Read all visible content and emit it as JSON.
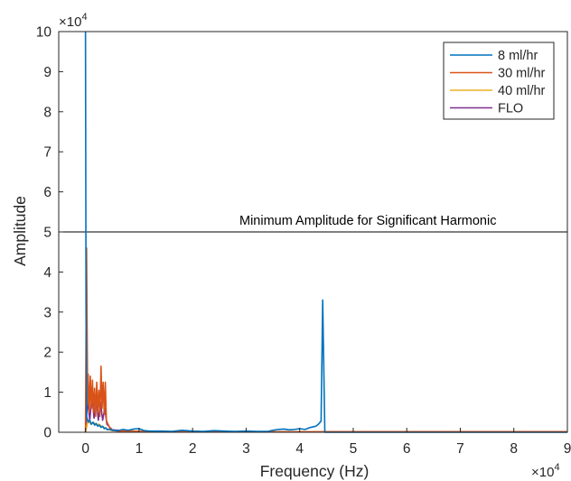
{
  "chart_data": {
    "type": "line",
    "xlabel": "Frequency (Hz)",
    "ylabel": "Amplitude",
    "x_exponent_label": "×10",
    "x_exponent_power": "4",
    "y_exponent_label": "×10",
    "y_exponent_power": "4",
    "x_scale": 10000,
    "y_scale": 10000,
    "xlim": [
      -5000,
      90000
    ],
    "ylim": [
      0,
      100000
    ],
    "x_ticks": [
      0,
      10000,
      20000,
      30000,
      40000,
      50000,
      60000,
      70000,
      80000,
      90000
    ],
    "x_tick_labels": [
      "0",
      "1",
      "2",
      "3",
      "4",
      "5",
      "6",
      "7",
      "8",
      "9"
    ],
    "y_ticks": [
      0,
      10000,
      20000,
      30000,
      40000,
      50000,
      60000,
      70000,
      80000,
      90000,
      100000
    ],
    "y_tick_labels": [
      "0",
      "1",
      "2",
      "3",
      "4",
      "5",
      "6",
      "7",
      "8",
      "9",
      "10"
    ],
    "grid": true,
    "legend_position": "top-right",
    "threshold": {
      "y": 50000,
      "label": "Minimum Amplitude for Significant Harmonic",
      "color": "#000000"
    },
    "series": [
      {
        "name": "8 ml/hr",
        "color": "#0072BD",
        "x": [
          0,
          100,
          200,
          500,
          800,
          1100,
          1400,
          1700,
          2000,
          2300,
          2600,
          2900,
          3200,
          3500,
          3800,
          4100,
          4400,
          5000,
          6000,
          7000,
          8000,
          9000,
          10000,
          11000,
          12000,
          14000,
          16000,
          18000,
          20000,
          22000,
          24000,
          26000,
          28000,
          30000,
          32000,
          34000,
          35000,
          36000,
          37000,
          38000,
          39000,
          40000,
          41000,
          42000,
          43000,
          43500,
          44000,
          44300,
          44700,
          46000,
          50000,
          60000,
          70000,
          80000,
          90000
        ],
        "y": [
          100000,
          30000,
          4000,
          2500,
          3000,
          2000,
          2500,
          1800,
          2200,
          1500,
          1800,
          1200,
          1500,
          900,
          1100,
          600,
          800,
          500,
          400,
          700,
          500,
          800,
          900,
          400,
          300,
          300,
          200,
          500,
          300,
          200,
          400,
          300,
          200,
          300,
          200,
          200,
          500,
          700,
          800,
          600,
          700,
          900,
          700,
          1200,
          1500,
          2000,
          2800,
          33000,
          0,
          0,
          0,
          0,
          0,
          0,
          0
        ]
      },
      {
        "name": "30 ml/hr",
        "color": "#D95319",
        "x": [
          0,
          200,
          400,
          500,
          700,
          900,
          1100,
          1300,
          1500,
          1700,
          1900,
          2100,
          2300,
          2500,
          2700,
          2900,
          3100,
          3300,
          3500,
          3700,
          3900,
          4200,
          4600,
          5000,
          6000,
          10000,
          20000,
          30000,
          40000,
          44000,
          45000,
          50000,
          60000,
          70000,
          80000,
          90000
        ],
        "y": [
          0,
          46000,
          7000,
          14500,
          5000,
          14000,
          6000,
          13000,
          5000,
          11000,
          4000,
          12500,
          5000,
          10500,
          4000,
          16500,
          6000,
          12500,
          4500,
          12500,
          3000,
          2000,
          1000,
          500,
          300,
          200,
          100,
          100,
          100,
          100,
          150,
          150,
          150,
          150,
          150,
          150
        ]
      },
      {
        "name": "40 ml/hr",
        "color": "#EDB120",
        "x": [
          0,
          500,
          1000,
          1500,
          2000,
          2500,
          3000,
          3500,
          4000,
          5000,
          10000,
          30000,
          45000,
          60000,
          75000,
          90000
        ],
        "y": [
          0,
          3000,
          2000,
          2500,
          1800,
          2000,
          1500,
          1200,
          800,
          400,
          200,
          100,
          100,
          100,
          100,
          100
        ]
      },
      {
        "name": "FLO",
        "color": "#7E2F8E",
        "x": [
          0,
          400,
          800,
          1200,
          1600,
          2000,
          2400,
          2800,
          3200,
          3600,
          4000,
          5000,
          10000,
          30000,
          45000,
          60000,
          75000,
          90000
        ],
        "y": [
          0,
          8000,
          3000,
          9000,
          3500,
          8500,
          3000,
          7500,
          3000,
          6000,
          2000,
          600,
          200,
          100,
          100,
          100,
          100,
          100
        ]
      }
    ]
  }
}
